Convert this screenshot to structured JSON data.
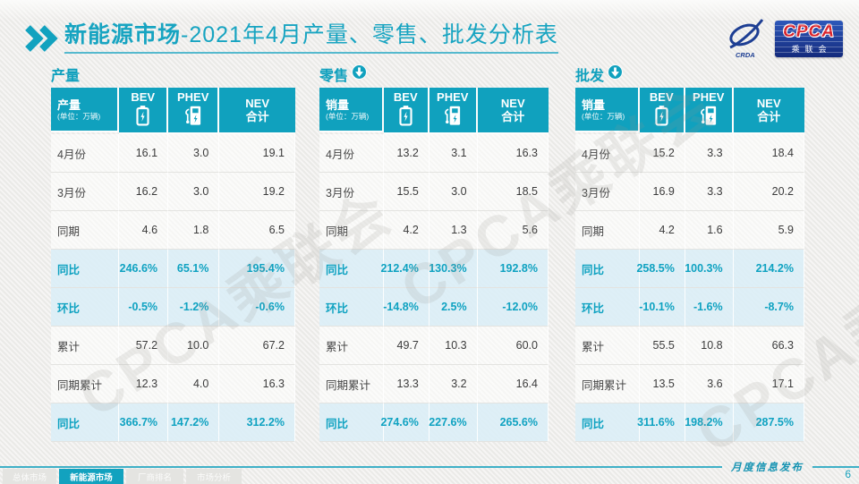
{
  "page": {
    "title_bold": "新能源市场",
    "title_rest": "-2021年4月产量、零售、批发分析表",
    "watermark": "CPCA乘联会",
    "footer_note": "月度信息发布",
    "page_number": "6"
  },
  "logo": {
    "cpca": "CPCA",
    "sub": "乘联会",
    "crda": "CRDA",
    "swoosh_icon": "pen-swoosh-logo-icon"
  },
  "colors": {
    "teal": "#10a1be",
    "highlight_bg": "#dbeef6",
    "highlight_text": "#0fa2c1",
    "logo_blue": "#1d3e93",
    "logo_red": "#d8242c"
  },
  "columns": [
    {
      "label": "BEV",
      "icon": "battery-icon"
    },
    {
      "label": "PHEV",
      "icon": "ev-charger-icon"
    },
    {
      "label": "NEV",
      "sublabel": "合计",
      "icon": null
    }
  ],
  "tables": [
    {
      "key": "production",
      "section_title": "产量",
      "trend_icon": null,
      "corner_label": "产量",
      "corner_unit": "(单位：万辆)",
      "rows": [
        {
          "label": "4月份",
          "values": [
            "16.1",
            "3.0",
            "19.1"
          ],
          "highlight": false
        },
        {
          "label": "3月份",
          "values": [
            "16.2",
            "3.0",
            "19.2"
          ],
          "highlight": false
        },
        {
          "label": "同期",
          "values": [
            "4.6",
            "1.8",
            "6.5"
          ],
          "highlight": false
        },
        {
          "label": "同比",
          "values": [
            "246.6%",
            "65.1%",
            "195.4%"
          ],
          "highlight": true
        },
        {
          "label": "环比",
          "values": [
            "-0.5%",
            "-1.2%",
            "-0.6%"
          ],
          "highlight": true
        },
        {
          "label": "累计",
          "values": [
            "57.2",
            "10.0",
            "67.2"
          ],
          "highlight": false
        },
        {
          "label": "同期累计",
          "values": [
            "12.3",
            "4.0",
            "16.3"
          ],
          "highlight": false
        },
        {
          "label": "同比",
          "values": [
            "366.7%",
            "147.2%",
            "312.2%"
          ],
          "highlight": true
        }
      ]
    },
    {
      "key": "retail",
      "section_title": "零售",
      "trend_icon": "down-arrow-icon",
      "corner_label": "销量",
      "corner_unit": "(单位：万辆)",
      "rows": [
        {
          "label": "4月份",
          "values": [
            "13.2",
            "3.1",
            "16.3"
          ],
          "highlight": false
        },
        {
          "label": "3月份",
          "values": [
            "15.5",
            "3.0",
            "18.5"
          ],
          "highlight": false
        },
        {
          "label": "同期",
          "values": [
            "4.2",
            "1.3",
            "5.6"
          ],
          "highlight": false
        },
        {
          "label": "同比",
          "values": [
            "212.4%",
            "130.3%",
            "192.8%"
          ],
          "highlight": true
        },
        {
          "label": "环比",
          "values": [
            "-14.8%",
            "2.5%",
            "-12.0%"
          ],
          "highlight": true
        },
        {
          "label": "累计",
          "values": [
            "49.7",
            "10.3",
            "60.0"
          ],
          "highlight": false
        },
        {
          "label": "同期累计",
          "values": [
            "13.3",
            "3.2",
            "16.4"
          ],
          "highlight": false
        },
        {
          "label": "同比",
          "values": [
            "274.6%",
            "227.6%",
            "265.6%"
          ],
          "highlight": true
        }
      ]
    },
    {
      "key": "wholesale",
      "section_title": "批发",
      "trend_icon": "down-arrow-icon",
      "corner_label": "销量",
      "corner_unit": "(单位：万辆)",
      "rows": [
        {
          "label": "4月份",
          "values": [
            "15.2",
            "3.3",
            "18.4"
          ],
          "highlight": false
        },
        {
          "label": "3月份",
          "values": [
            "16.9",
            "3.3",
            "20.2"
          ],
          "highlight": false
        },
        {
          "label": "同期",
          "values": [
            "4.2",
            "1.6",
            "5.9"
          ],
          "highlight": false
        },
        {
          "label": "同比",
          "values": [
            "258.5%",
            "100.3%",
            "214.2%"
          ],
          "highlight": true
        },
        {
          "label": "环比",
          "values": [
            "-10.1%",
            "-1.6%",
            "-8.7%"
          ],
          "highlight": true
        },
        {
          "label": "累计",
          "values": [
            "55.5",
            "10.8",
            "66.3"
          ],
          "highlight": false
        },
        {
          "label": "同期累计",
          "values": [
            "13.5",
            "3.6",
            "17.1"
          ],
          "highlight": false
        },
        {
          "label": "同比",
          "values": [
            "311.6%",
            "198.2%",
            "287.5%"
          ],
          "highlight": true
        }
      ]
    }
  ],
  "footer_tabs": [
    {
      "label": "总体市场",
      "active": false
    },
    {
      "label": "新能源市场",
      "active": true
    },
    {
      "label": "厂商排名",
      "active": false
    },
    {
      "label": "市场分析",
      "active": false
    }
  ]
}
